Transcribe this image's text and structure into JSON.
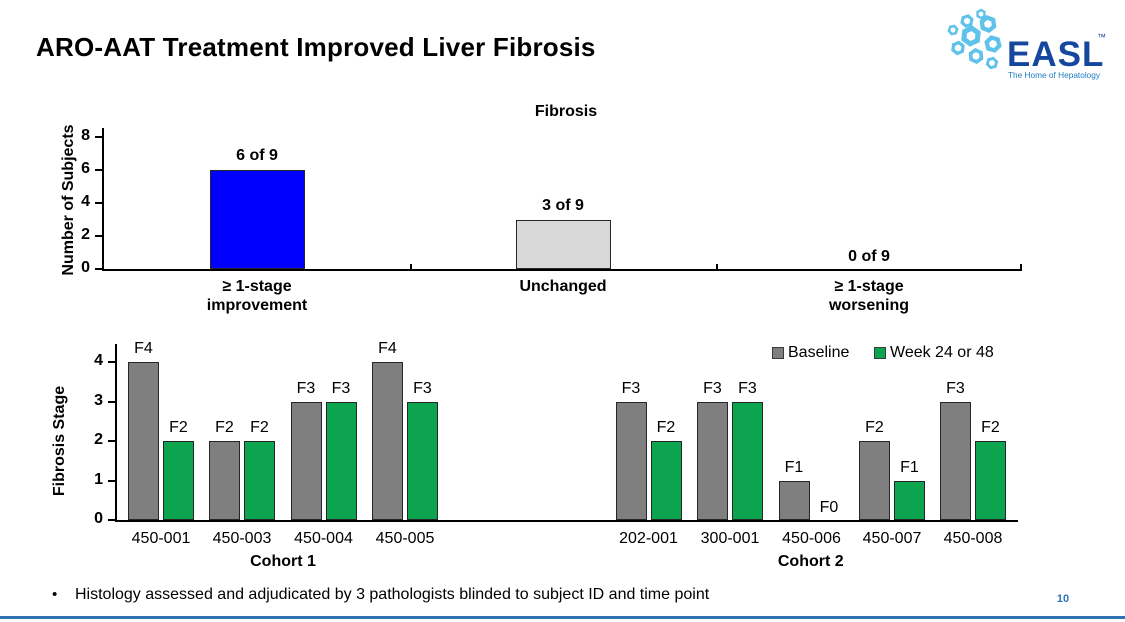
{
  "slide": {
    "title": "ARO-AAT Treatment Improved Liver Fibrosis",
    "page_number": "10"
  },
  "footnote": {
    "bullet": "•",
    "text": "Histology assessed and adjudicated by 3 pathologists blinded to subject ID and time point"
  },
  "logo": {
    "name": "EASL",
    "tm": "™",
    "tagline": "The Home of Hepatology"
  },
  "colors": {
    "improvement_bar": "#0000fd",
    "unchanged_bar": "#d8d8d8",
    "baseline_bar": "#7f7f7f",
    "week_bar": "#0ca44e",
    "bar_border": "#262626",
    "accent_blue": "#2e74b5",
    "logo_dark_blue": "#16479e",
    "logo_light_blue": "#5fc2ea"
  },
  "chart_data": [
    {
      "type": "bar",
      "title": "Fibrosis",
      "xlabel": "",
      "ylabel": "Number of Subjects",
      "ylim": [
        0,
        8
      ],
      "yticks": [
        0,
        2,
        4,
        6,
        8
      ],
      "ytick_labels": [
        "0",
        "2",
        "4",
        "6",
        "8"
      ],
      "grid": "off",
      "categories": [
        [
          "≥ 1-stage",
          "improvement"
        ],
        [
          "Unchanged"
        ],
        [
          "≥ 1-stage",
          "worsening"
        ]
      ],
      "values": [
        6,
        3,
        0
      ],
      "bar_labels": [
        "6 of 9",
        "3 of 9",
        "0 of 9"
      ],
      "bar_colors": [
        "#0000fd",
        "#d8d8d8",
        null
      ]
    },
    {
      "type": "bar",
      "title": "",
      "xlabel": "",
      "ylabel": "Fibrosis Stage",
      "ylim": [
        0,
        4
      ],
      "yticks": [
        0,
        1,
        2,
        3,
        4
      ],
      "ytick_labels": [
        "0",
        "1",
        "2",
        "3",
        "4"
      ],
      "grid": "off",
      "legend_position": "top-right",
      "legend": [
        {
          "label": "Baseline",
          "color": "#7f7f7f"
        },
        {
          "label": "Week 24 or 48",
          "color": "#0ca44e"
        }
      ],
      "groups": [
        {
          "cohort": "Cohort 1",
          "subjects": [
            {
              "id": "450-001",
              "baseline": {
                "stage": 4,
                "label": "F4"
              },
              "week": {
                "stage": 2,
                "label": "F2"
              }
            },
            {
              "id": "450-003",
              "baseline": {
                "stage": 2,
                "label": "F2"
              },
              "week": {
                "stage": 2,
                "label": "F2"
              }
            },
            {
              "id": "450-004",
              "baseline": {
                "stage": 3,
                "label": "F3"
              },
              "week": {
                "stage": 3,
                "label": "F3"
              }
            },
            {
              "id": "450-005",
              "baseline": {
                "stage": 4,
                "label": "F4"
              },
              "week": {
                "stage": 3,
                "label": "F3"
              }
            }
          ]
        },
        {
          "cohort": "Cohort 2",
          "subjects": [
            {
              "id": "202-001",
              "baseline": {
                "stage": 3,
                "label": "F3"
              },
              "week": {
                "stage": 2,
                "label": "F2"
              }
            },
            {
              "id": "300-001",
              "baseline": {
                "stage": 3,
                "label": "F3"
              },
              "week": {
                "stage": 3,
                "label": "F3"
              }
            },
            {
              "id": "450-006",
              "baseline": {
                "stage": 1,
                "label": "F1"
              },
              "week": {
                "stage": 0,
                "label": "F0"
              }
            },
            {
              "id": "450-007",
              "baseline": {
                "stage": 2,
                "label": "F2"
              },
              "week": {
                "stage": 1,
                "label": "F1"
              }
            },
            {
              "id": "450-008",
              "baseline": {
                "stage": 3,
                "label": "F3"
              },
              "week": {
                "stage": 2,
                "label": "F2"
              }
            }
          ]
        }
      ]
    }
  ]
}
